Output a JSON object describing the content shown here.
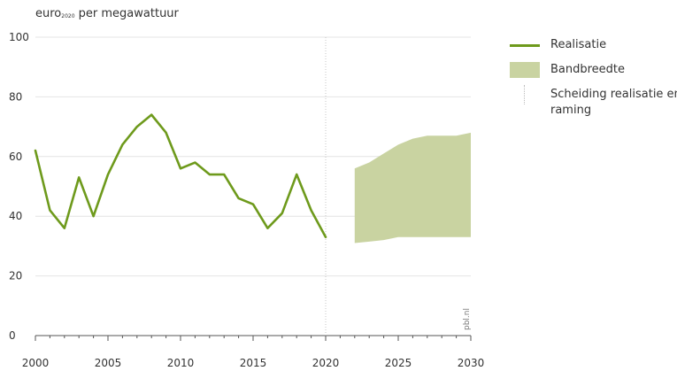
{
  "chart_data": {
    "type": "line",
    "ylabel_base": "euro",
    "ylabel_sub": "2020",
    "ylabel_rest": " per megawattuur",
    "xlim": [
      2000,
      2030
    ],
    "ylim": [
      0,
      100
    ],
    "xticks": [
      2000,
      2005,
      2010,
      2015,
      2020,
      2025,
      2030
    ],
    "yticks": [
      0,
      20,
      40,
      60,
      80,
      100
    ],
    "grid": "horizontal",
    "legend_position": "right",
    "separator_x": 2020,
    "series": [
      {
        "name": "Realisatie",
        "color": "#6e9a1c",
        "x": [
          2000,
          2001,
          2002,
          2003,
          2004,
          2005,
          2006,
          2007,
          2008,
          2009,
          2010,
          2011,
          2012,
          2013,
          2014,
          2015,
          2016,
          2017,
          2018,
          2019,
          2020
        ],
        "y": [
          62,
          42,
          36,
          53,
          40,
          54,
          64,
          70,
          74,
          68,
          56,
          58,
          54,
          54,
          46,
          44,
          36,
          41,
          54,
          42,
          33
        ]
      }
    ],
    "band": {
      "name": "Bandbreedte",
      "color": "#c9d3a1",
      "x": [
        2022,
        2023,
        2024,
        2025,
        2026,
        2027,
        2028,
        2029,
        2030
      ],
      "upper": [
        56,
        58,
        61,
        64,
        66,
        67,
        67,
        67,
        68
      ],
      "lower": [
        31,
        31.5,
        32,
        33,
        33,
        33,
        33,
        33,
        33
      ]
    },
    "separator_name": "Scheiding realisatie en raming",
    "source": "pbl.nl"
  }
}
